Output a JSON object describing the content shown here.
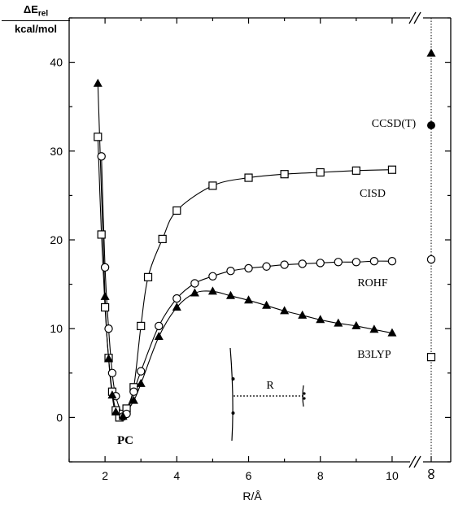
{
  "ylabel": {
    "top": "ΔE",
    "sub": "rel",
    "bottom": "kcal/mol"
  },
  "xlabel": "R/Å",
  "chart_data": {
    "type": "scatter",
    "title": "",
    "xlabel": "R/Å",
    "ylabel": "ΔErel kcal/mol",
    "xlim": [
      1,
      10.5
    ],
    "ylim": [
      -5,
      45
    ],
    "x_ticks": [
      "2",
      "4",
      "6",
      "8",
      "10",
      "∞"
    ],
    "y_ticks": [
      "0",
      "10",
      "20",
      "30",
      "40"
    ],
    "grid": false,
    "axis_break": "x-axis between 10 and ∞",
    "series": [
      {
        "name": "CISD",
        "marker": "open-square",
        "x": [
          1.8,
          1.9,
          2.0,
          2.1,
          2.2,
          2.3,
          2.4,
          2.5,
          2.6,
          2.8,
          3.0,
          3.2,
          3.6,
          4.0,
          5.0,
          6.0,
          7.0,
          8.0,
          9.0,
          10.0
        ],
        "y": [
          31.6,
          20.6,
          12.4,
          6.7,
          2.9,
          0.8,
          0.0,
          0.4,
          1.0,
          3.4,
          10.3,
          15.8,
          20.1,
          23.3,
          26.1,
          27.0,
          27.4,
          27.6,
          27.8,
          27.9
        ],
        "infinity_value": 6.8
      },
      {
        "name": "ROHF",
        "marker": "open-circle",
        "x": [
          1.9,
          2.0,
          2.1,
          2.2,
          2.3,
          2.5,
          2.6,
          2.8,
          3.0,
          3.5,
          4.0,
          4.5,
          5.0,
          5.5,
          6.0,
          6.5,
          7.0,
          7.5,
          8.0,
          8.5,
          9.0,
          9.5,
          10.0
        ],
        "y": [
          29.4,
          16.9,
          10.0,
          5.0,
          2.4,
          0.1,
          0.4,
          2.9,
          5.2,
          10.3,
          13.4,
          15.1,
          15.9,
          16.5,
          16.8,
          17.0,
          17.2,
          17.3,
          17.4,
          17.5,
          17.5,
          17.6,
          17.6
        ],
        "infinity_value": 17.8
      },
      {
        "name": "B3LYP",
        "marker": "filled-triangle",
        "x": [
          1.8,
          2.0,
          2.1,
          2.2,
          2.3,
          2.5,
          2.8,
          3.0,
          3.5,
          4.0,
          4.5,
          5.0,
          5.5,
          6.0,
          6.5,
          7.0,
          7.5,
          8.0,
          8.5,
          9.0,
          9.5,
          10.0
        ],
        "y": [
          37.6,
          13.6,
          6.6,
          2.5,
          0.6,
          0.1,
          1.9,
          3.8,
          9.1,
          12.4,
          14.0,
          14.2,
          13.7,
          13.2,
          12.6,
          12.0,
          11.5,
          11.0,
          10.6,
          10.3,
          9.9,
          9.5
        ],
        "infinity_value": 41.0
      },
      {
        "name": "CCSD(T)",
        "marker": "filled-circle",
        "x": [],
        "y": [],
        "infinity_value": 32.9
      }
    ],
    "annotations": [
      "PC",
      "R"
    ]
  }
}
